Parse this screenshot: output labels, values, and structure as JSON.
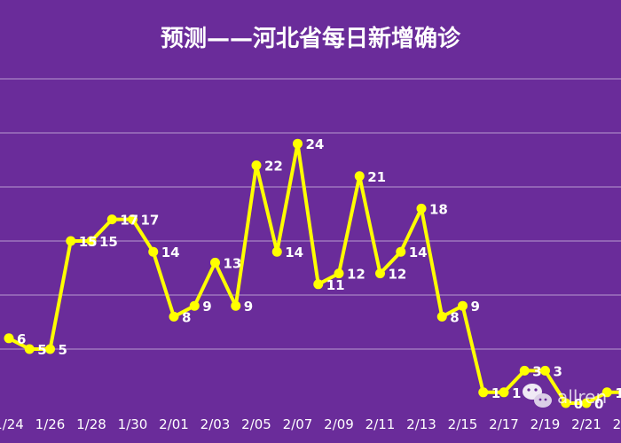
{
  "chart_data": {
    "type": "line",
    "title": "预测——河北省每日新增确诊",
    "xlabel": "",
    "ylabel": "",
    "x": [
      "1/24",
      "1/25",
      "1/26",
      "1/27",
      "1/28",
      "1/29",
      "1/30",
      "1/31",
      "2/01",
      "2/02",
      "2/03",
      "2/04",
      "2/05",
      "2/06",
      "2/07",
      "2/08",
      "2/09",
      "2/10",
      "2/11",
      "2/12",
      "2/13",
      "2/14",
      "2/15",
      "2/16",
      "2/17",
      "2/18",
      "2/19",
      "2/20",
      "2/21",
      "2/22",
      "2/23"
    ],
    "tick_labels": [
      "1/24",
      "1/26",
      "1/28",
      "1/30",
      "2/01",
      "2/03",
      "2/05",
      "2/07",
      "2/09",
      "2/11",
      "2/13",
      "2/15",
      "2/17",
      "2/19",
      "2/21",
      "2/23"
    ],
    "series": [
      {
        "values": [
          6,
          5,
          5,
          15,
          15,
          17,
          17,
          14,
          8,
          9,
          13,
          9,
          22,
          14,
          24,
          11,
          12,
          21,
          12,
          14,
          18,
          8,
          9,
          1,
          1,
          3,
          3,
          0,
          0,
          1,
          1
        ],
        "data_labels": [
          "6",
          "5",
          "5",
          "15",
          "15",
          "17",
          "17",
          "14",
          "8",
          "9",
          "13",
          "9",
          "22",
          "14",
          "24",
          "11",
          "12",
          "21",
          "12",
          "14",
          "18",
          "8",
          "9",
          "1",
          "1",
          "3",
          "3",
          "0",
          "0",
          "1",
          "1"
        ]
      }
    ],
    "ylim": [
      0,
      30
    ],
    "grid": true,
    "legend": "none",
    "line_color": "#ffff00",
    "background_color": "#6a2c9a",
    "text_color": "#ffffff"
  },
  "watermark": {
    "icon": "wechat-icon",
    "text": "allren"
  }
}
